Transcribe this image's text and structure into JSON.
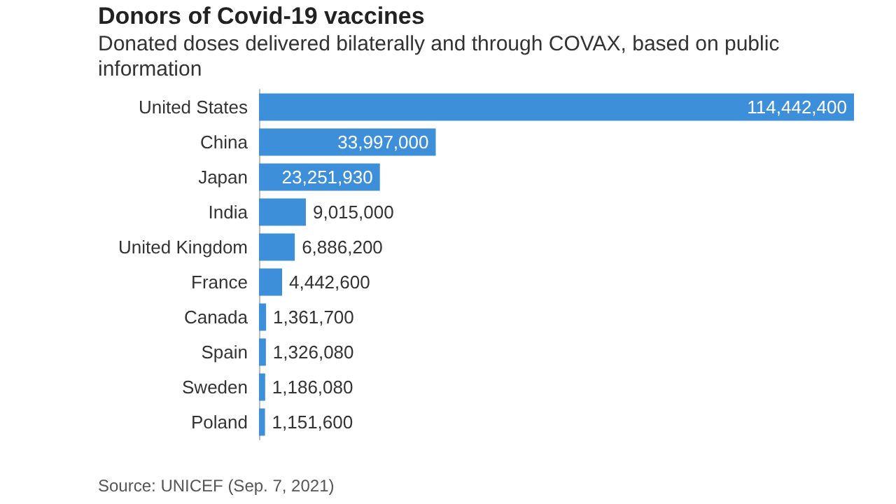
{
  "chart_data": {
    "type": "bar",
    "orientation": "horizontal",
    "title": "Donors of Covid-19 vaccines",
    "subtitle": "Donated doses delivered bilaterally and through COVAX, based on public information",
    "categories": [
      "United States",
      "China",
      "Japan",
      "India",
      "United Kingdom",
      "France",
      "Canada",
      "Spain",
      "Sweden",
      "Poland"
    ],
    "values": [
      114442400,
      33997000,
      23251930,
      9015000,
      6886200,
      4442600,
      1361700,
      1326080,
      1186080,
      1151600
    ],
    "value_labels": [
      "114,442,400",
      "33,997,000",
      "23,251,930",
      "9,015,000",
      "6,886,200",
      "4,442,600",
      "1,361,700",
      "1,326,080",
      "1,186,080",
      "1,151,600"
    ],
    "color": "#3d8fd9",
    "annotations": [
      "Source: UNICEF (Sep. 7, 2021)"
    ]
  }
}
